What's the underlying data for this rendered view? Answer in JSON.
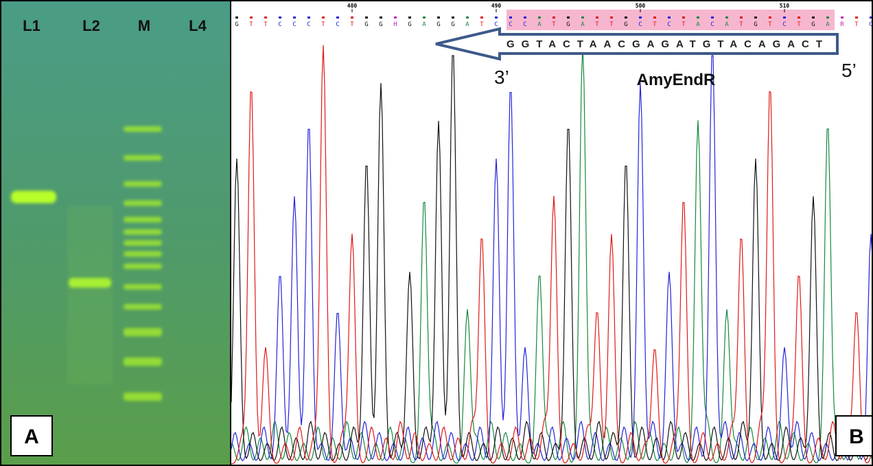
{
  "panel_a": {
    "label": "A",
    "lanes": [
      "L1",
      "L2",
      "M",
      "L4"
    ]
  },
  "panel_b": {
    "label": "B",
    "positions": [
      480,
      490,
      500,
      510
    ],
    "base_calls": [
      "G",
      "T",
      "T",
      "C",
      "C",
      "C",
      "T",
      "C",
      "T",
      "G",
      "G",
      "H",
      "G",
      "A",
      "G",
      "G",
      "A",
      "T",
      "C",
      "C",
      "C",
      "A",
      "T",
      "G",
      "A",
      "T",
      "T",
      "G",
      "C",
      "T",
      "C",
      "T",
      "A",
      "C",
      "A",
      "T",
      "G",
      "T",
      "C",
      "T",
      "G",
      "A",
      "R",
      "T",
      "C"
    ],
    "primer": {
      "sequence": "GGTACTAACGAGATGTACAGACT",
      "end_left": "3’",
      "end_right": "5’",
      "name": "AmyEndR"
    }
  }
}
